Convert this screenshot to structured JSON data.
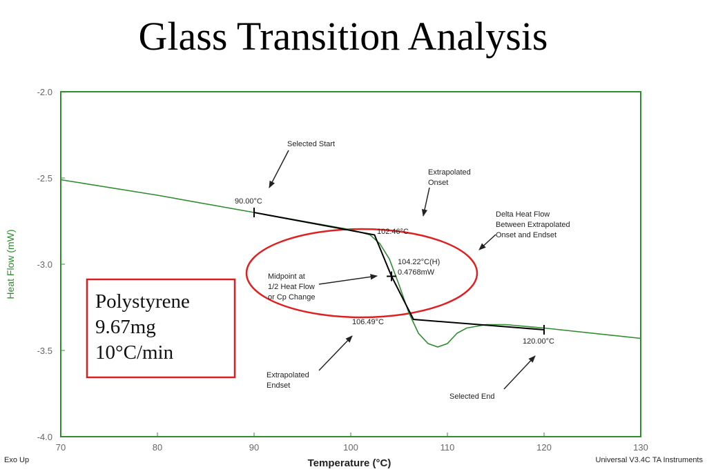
{
  "chart_data": {
    "type": "line",
    "title": "Glass Transition Analysis",
    "x_label": "Temperature (°C)",
    "y_label": "Heat Flow (mW)",
    "xlim": [
      70,
      130
    ],
    "xticks": [
      70,
      80,
      90,
      100,
      110,
      120,
      130
    ],
    "ylim": [
      -4,
      -2
    ],
    "yticks": [
      {
        "value": -2,
        "label": "-2.0"
      },
      -2.5,
      {
        "value": -3,
        "label": "-3.0"
      },
      -3.5,
      {
        "value": -4,
        "label": "-4.0"
      }
    ],
    "series": [
      {
        "color": "#2e8b2e",
        "x": [
          70,
          80,
          90,
          100,
          102,
          103,
          104,
          105,
          106,
          107,
          108,
          109,
          110,
          111,
          112,
          114,
          116,
          120,
          130
        ],
        "values": [
          -2.51,
          -2.6,
          -2.7,
          -2.8,
          -2.83,
          -2.88,
          -2.97,
          -3.12,
          -3.28,
          -3.4,
          -3.46,
          -3.48,
          -3.46,
          -3.4,
          -3.37,
          -3.35,
          -3.35,
          -3.37,
          -3.43
        ]
      },
      {
        "color": "#000000",
        "x": [
          90,
          102.46,
          104.22,
          106.49,
          120
        ],
        "values": [
          -2.7,
          -2.83,
          -3.07,
          -3.32,
          -3.38
        ]
      }
    ],
    "annotations": [
      [
        "Selected Start"
      ],
      [
        "Extrapolated",
        "Onset"
      ],
      [
        "Delta Heat Flow",
        "Between Extrapolated",
        "Onset and Endset"
      ],
      [
        "90.00°C"
      ],
      [
        "102.46°C"
      ],
      [
        "104.22°C(H)",
        "0.4768mW"
      ],
      [
        "Midpoint at",
        "1/2 Heat Flow",
        "or Cp Change"
      ],
      [
        "106.49°C"
      ],
      [
        "120.00°C"
      ],
      [
        "Extrapolated",
        "Endset"
      ],
      [
        "Selected End"
      ]
    ],
    "sample": [
      "Polystyrene",
      "9.67mg",
      "10°C/min"
    ],
    "footer_left": "Exo Up",
    "footer_right": "Universal V3.4C TA Instruments"
  }
}
